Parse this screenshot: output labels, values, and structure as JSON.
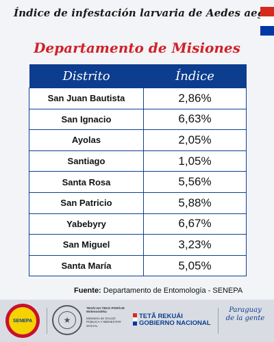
{
  "header": {
    "title": "Índice de infestación larvaria de Aedes aegypti",
    "subtitle": "Departamento de Misiones"
  },
  "table": {
    "columns": [
      "Distrito",
      "Índice"
    ],
    "rows": [
      {
        "distrito": "San Juan Bautista",
        "indice": "2,86%"
      },
      {
        "distrito": "San Ignacio",
        "indice": "6,63%"
      },
      {
        "distrito": "Ayolas",
        "indice": "2,05%"
      },
      {
        "distrito": "Santiago",
        "indice": "1,05%"
      },
      {
        "distrito": "Santa Rosa",
        "indice": "5,56%"
      },
      {
        "distrito": "San Patricio",
        "indice": "5,88%"
      },
      {
        "distrito": "Yabebyry",
        "indice": "6,67%"
      },
      {
        "distrito": "San Miguel",
        "indice": "3,23%"
      },
      {
        "distrito": "Santa María",
        "indice": "5,05%"
      }
    ]
  },
  "source": {
    "label": "Fuente:",
    "text": "Departamento de Entomología - SENEPA"
  },
  "footer": {
    "senepa_logo_text": "SENEPA",
    "ministry_line1": "TESÃI HA TEKO PORÃVE Motenondeha",
    "ministry_line2": "Ministerio de SALUD PÚBLICA Y BIENESTAR SOCIAL",
    "gob_line1": "TETÃ REKUÁI",
    "gob_line2": "GOBIERNO NACIONAL",
    "lema": "Paraguay de la gente"
  },
  "colors": {
    "accent_red": "#d12127",
    "table_blue": "#0c3d8f",
    "flag": [
      "#d52b1e",
      "#ffffff",
      "#0038a8"
    ]
  },
  "icons": {
    "flag": "paraguay-flag-icon",
    "seal": "national-seal-icon"
  }
}
